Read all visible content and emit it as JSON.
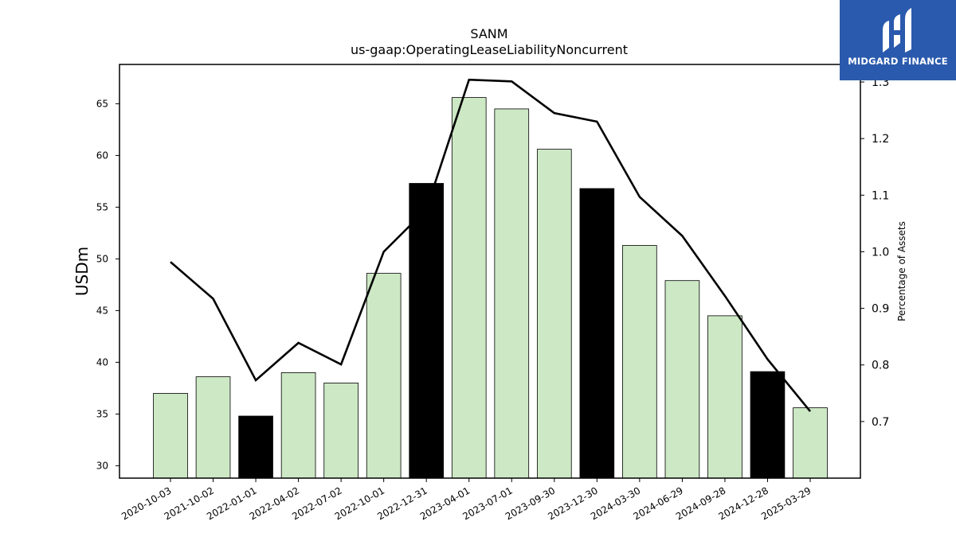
{
  "chart_data": {
    "type": "bar",
    "title": "SANM",
    "subtitle": "us-gaap:OperatingLeaseLiabilityNoncurrent",
    "ylabel": "USDm",
    "y2label": "Percentage of Assets",
    "categories": [
      "2020-10-03",
      "2021-10-02",
      "2022-01-01",
      "2022-04-02",
      "2022-07-02",
      "2022-10-01",
      "2022-12-31",
      "2023-04-01",
      "2023-07-01",
      "2023-09-30",
      "2023-12-30",
      "2024-03-30",
      "2024-06-29",
      "2024-09-28",
      "2024-12-28",
      "2025-03-29"
    ],
    "series": [
      {
        "type": "bar",
        "values": [
          37.0,
          38.6,
          34.8,
          39.0,
          38.0,
          48.6,
          57.3,
          65.6,
          64.5,
          60.6,
          56.8,
          51.3,
          47.9,
          44.5,
          39.1,
          35.6
        ],
        "highlight": [
          false,
          false,
          true,
          false,
          false,
          false,
          true,
          false,
          false,
          false,
          true,
          false,
          false,
          false,
          true,
          false
        ],
        "color": "#cde8c5",
        "highlight_color": "#000000"
      },
      {
        "type": "line",
        "axis": "right",
        "values": [
          0.982,
          0.917,
          0.773,
          0.839,
          0.801,
          1.0,
          1.075,
          1.304,
          1.301,
          1.245,
          1.23,
          1.097,
          1.028,
          0.922,
          0.81,
          0.718
        ],
        "color": "#000000"
      }
    ],
    "ylim": [
      28.8,
      68.8
    ],
    "yticks": [
      30,
      35,
      40,
      45,
      50,
      55,
      60,
      65
    ],
    "y2lim": [
      0.6,
      1.331
    ],
    "y2ticks": [
      0.7,
      0.8,
      0.9,
      1.0,
      1.1,
      1.2,
      1.3
    ],
    "grid": false
  },
  "logo": {
    "text": "MIDGARD FINANCE",
    "background": "#2a5aad"
  }
}
